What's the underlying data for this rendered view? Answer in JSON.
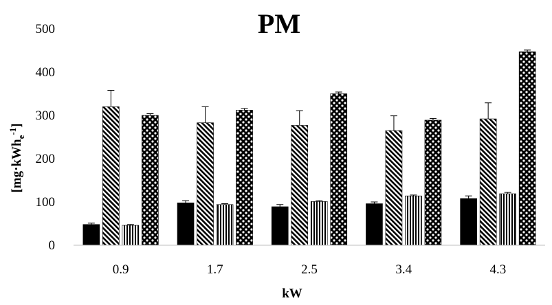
{
  "chart_data": {
    "type": "bar",
    "title": "PM",
    "xlabel": "kW",
    "ylabel": {
      "main": "[mg·kWh",
      "sub": "e",
      "sup": "-1",
      "close": "]"
    },
    "ylim": [
      0,
      500
    ],
    "yticks": [
      "0",
      "100",
      "200",
      "300",
      "400",
      "500"
    ],
    "grid": false,
    "legend": "none",
    "categories": [
      "0.9",
      "1.7",
      "2.5",
      "3.4",
      "4.3"
    ],
    "series": [
      {
        "pattern": "solid-black",
        "values": [
          48,
          98,
          89,
          96,
          108
        ],
        "errors": [
          3,
          5,
          5,
          4,
          6
        ]
      },
      {
        "pattern": "diagonal-hatch",
        "values": [
          320,
          283,
          277,
          265,
          292
        ],
        "errors": [
          38,
          37,
          34,
          34,
          37
        ]
      },
      {
        "pattern": "vertical-stripes",
        "values": [
          46,
          94,
          101,
          114,
          119
        ],
        "errors": [
          2,
          2,
          2,
          2,
          3
        ]
      },
      {
        "pattern": "checker-dots",
        "values": [
          300,
          312,
          350,
          289,
          447
        ],
        "errors": [
          4,
          4,
          4,
          4,
          4
        ]
      }
    ]
  }
}
